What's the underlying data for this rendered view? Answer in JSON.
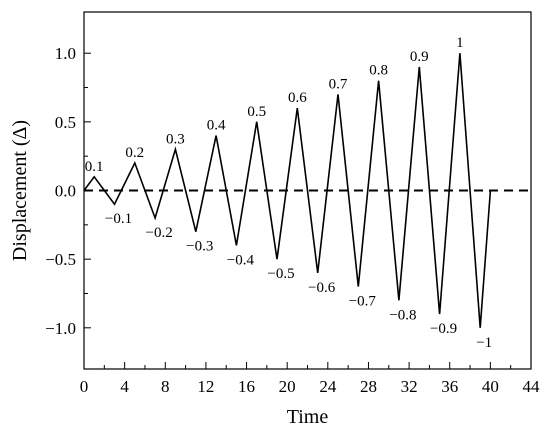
{
  "chart_data": {
    "type": "line",
    "xlabel": "Time",
    "ylabel": "Displacement (Δ)",
    "xlim": [
      0,
      44
    ],
    "ylim": [
      -1.3,
      1.3
    ],
    "x_ticks": [
      0,
      4,
      8,
      12,
      16,
      20,
      24,
      28,
      32,
      36,
      40,
      44
    ],
    "y_ticks": [
      -1.0,
      -0.5,
      0.0,
      0.5,
      1.0
    ],
    "x_tick_labels": [
      "0",
      "4",
      "8",
      "12",
      "16",
      "20",
      "24",
      "28",
      "32",
      "36",
      "40",
      "44"
    ],
    "y_tick_labels": [
      "−1.0",
      "−0.5",
      "0.0",
      "0.5",
      "1.0"
    ],
    "grid": false,
    "series": [
      {
        "x": [
          0,
          1,
          3,
          5,
          7,
          9,
          11,
          13,
          15,
          17,
          19,
          21,
          23,
          25,
          27,
          29,
          31,
          33,
          35,
          37,
          39,
          40
        ],
        "y": [
          0,
          0.1,
          -0.1,
          0.2,
          -0.2,
          0.3,
          -0.3,
          0.4,
          -0.4,
          0.5,
          -0.5,
          0.6,
          -0.6,
          0.7,
          -0.7,
          0.8,
          -0.8,
          0.9,
          -0.9,
          1.0,
          -1.0,
          0
        ],
        "style": "solid",
        "color": "#000000"
      }
    ],
    "reference_line": {
      "y": 0,
      "style": "dashed",
      "color": "#000000"
    },
    "annotations": [
      {
        "x": 1,
        "y": 0.1,
        "text": "0.1"
      },
      {
        "x": 3,
        "y": -0.1,
        "text": "−0.1"
      },
      {
        "x": 5,
        "y": 0.2,
        "text": "0.2"
      },
      {
        "x": 7,
        "y": -0.2,
        "text": "−0.2"
      },
      {
        "x": 9,
        "y": 0.3,
        "text": "0.3"
      },
      {
        "x": 11,
        "y": -0.3,
        "text": "−0.3"
      },
      {
        "x": 13,
        "y": 0.4,
        "text": "0.4"
      },
      {
        "x": 15,
        "y": -0.4,
        "text": "−0.4"
      },
      {
        "x": 17,
        "y": 0.5,
        "text": "0.5"
      },
      {
        "x": 19,
        "y": -0.5,
        "text": "−0.5"
      },
      {
        "x": 21,
        "y": 0.6,
        "text": "0.6"
      },
      {
        "x": 23,
        "y": -0.6,
        "text": "−0.6"
      },
      {
        "x": 25,
        "y": 0.7,
        "text": "0.7"
      },
      {
        "x": 27,
        "y": -0.7,
        "text": "−0.7"
      },
      {
        "x": 29,
        "y": 0.8,
        "text": "0.8"
      },
      {
        "x": 31,
        "y": -0.8,
        "text": "−0.8"
      },
      {
        "x": 33,
        "y": 0.9,
        "text": "0.9"
      },
      {
        "x": 35,
        "y": -0.9,
        "text": "−0.9"
      },
      {
        "x": 37,
        "y": 1.0,
        "text": "1"
      },
      {
        "x": 39,
        "y": -1.0,
        "text": "−1"
      }
    ]
  }
}
